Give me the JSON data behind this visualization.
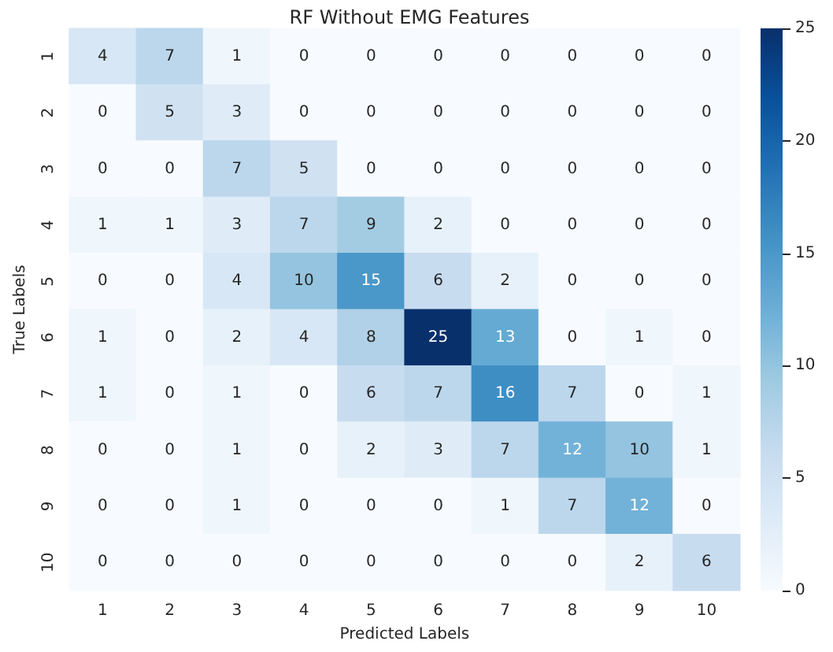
{
  "chart_data": {
    "type": "heatmap",
    "title": "RF Without EMG Features",
    "xlabel": "Predicted Labels",
    "ylabel": "True Labels",
    "categories": [
      "1",
      "2",
      "3",
      "4",
      "5",
      "6",
      "7",
      "8",
      "9",
      "10"
    ],
    "y_categories": [
      "1",
      "2",
      "3",
      "4",
      "5",
      "6",
      "7",
      "8",
      "9",
      "10"
    ],
    "cells": [
      [
        4,
        7,
        1,
        0,
        0,
        0,
        0,
        0,
        0,
        0
      ],
      [
        0,
        5,
        3,
        0,
        0,
        0,
        0,
        0,
        0,
        0
      ],
      [
        0,
        0,
        7,
        5,
        0,
        0,
        0,
        0,
        0,
        0
      ],
      [
        1,
        1,
        3,
        7,
        9,
        2,
        0,
        0,
        0,
        0
      ],
      [
        0,
        0,
        4,
        10,
        15,
        6,
        2,
        0,
        0,
        0
      ],
      [
        1,
        0,
        2,
        4,
        8,
        25,
        13,
        0,
        1,
        0
      ],
      [
        1,
        0,
        1,
        0,
        6,
        7,
        16,
        7,
        0,
        1
      ],
      [
        0,
        0,
        1,
        0,
        2,
        3,
        7,
        12,
        10,
        1
      ],
      [
        0,
        0,
        1,
        0,
        0,
        0,
        1,
        7,
        12,
        0
      ],
      [
        0,
        0,
        0,
        0,
        0,
        0,
        0,
        0,
        2,
        6
      ]
    ],
    "data_labels": true,
    "clim": [
      0,
      25
    ],
    "cticks": [
      0,
      5,
      10,
      15,
      20,
      25
    ]
  }
}
